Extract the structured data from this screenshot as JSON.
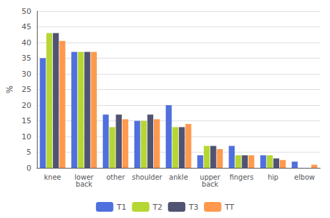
{
  "chart_data": {
    "type": "bar",
    "categories": [
      "knee",
      "lower\nback",
      "other",
      "shoulder",
      "ankle",
      "upper\nback",
      "fingers",
      "hip",
      "elbow"
    ],
    "series": [
      {
        "name": "T1",
        "values": [
          35,
          37,
          17,
          15,
          20,
          4,
          7,
          4,
          2
        ]
      },
      {
        "name": "T2",
        "values": [
          43,
          37,
          13,
          15,
          13,
          7,
          4,
          4,
          0
        ]
      },
      {
        "name": "T3",
        "values": [
          43,
          37,
          17,
          17,
          13,
          7,
          4,
          3,
          0
        ]
      },
      {
        "name": "TT",
        "values": [
          40.5,
          37,
          15.5,
          15.5,
          14,
          6,
          4,
          2.5,
          1
        ]
      }
    ],
    "ylabel": "%",
    "ylim": [
      0,
      50
    ],
    "yticks": [
      0,
      5,
      10,
      15,
      20,
      25,
      30,
      35,
      40,
      45,
      50
    ],
    "grid": true,
    "legend": "bottom"
  }
}
